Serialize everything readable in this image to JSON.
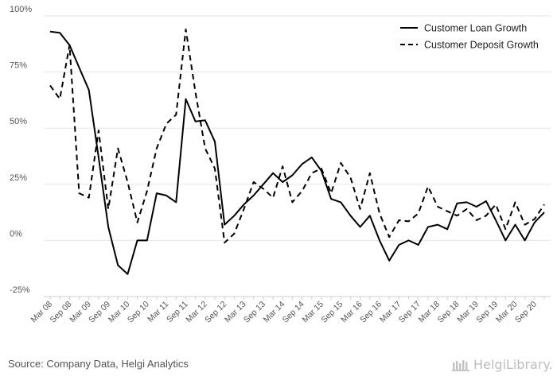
{
  "chart_data": {
    "type": "line",
    "title": "",
    "xlabel": "",
    "ylabel": "",
    "ylim": [
      -25,
      100
    ],
    "yticks": [
      "100%",
      "75%",
      "50%",
      "25%",
      "0%",
      "-25%"
    ],
    "grid": true,
    "legend_position": "top-right",
    "x_ticks": [
      "Mar 08",
      "Sep 08",
      "Mar 09",
      "Sep 09",
      "Mar 10",
      "Sep 10",
      "Mar 11",
      "Sep 11",
      "Mar 12",
      "Sep 12",
      "Mar 13",
      "Sep 13",
      "Mar 14",
      "Sep 14",
      "Mar 15",
      "Sep 15",
      "Mar 16",
      "Sep 16",
      "Mar 17",
      "Sep 17",
      "Mar 18",
      "Sep 18",
      "Mar 19",
      "Sep 19",
      "Mar 20",
      "Sep 20"
    ],
    "x": [
      "Mar 08",
      "Jun 08",
      "Sep 08",
      "Dec 08",
      "Mar 09",
      "Jun 09",
      "Sep 09",
      "Dec 09",
      "Mar 10",
      "Jun 10",
      "Sep 10",
      "Dec 10",
      "Mar 11",
      "Jun 11",
      "Sep 11",
      "Dec 11",
      "Mar 12",
      "Jun 12",
      "Sep 12",
      "Dec 12",
      "Mar 13",
      "Jun 13",
      "Sep 13",
      "Dec 13",
      "Mar 14",
      "Jun 14",
      "Sep 14",
      "Dec 14",
      "Mar 15",
      "Jun 15",
      "Sep 15",
      "Dec 15",
      "Mar 16",
      "Jun 16",
      "Sep 16",
      "Dec 16",
      "Mar 17",
      "Jun 17",
      "Sep 17",
      "Dec 17",
      "Mar 18",
      "Jun 18",
      "Sep 18",
      "Dec 18",
      "Mar 19",
      "Jun 19",
      "Sep 19",
      "Dec 19",
      "Mar 20",
      "Jun 20",
      "Sep 20",
      "Dec 20"
    ],
    "series": [
      {
        "name": "Customer Loan Growth",
        "style": "solid",
        "values": [
          93,
          92.5,
          87,
          77,
          67,
          37,
          6,
          -11,
          -15,
          0,
          0,
          21,
          20,
          17,
          63,
          53,
          53.5,
          44,
          7,
          11,
          16,
          20,
          25,
          30,
          26,
          29,
          34,
          37,
          31,
          18.5,
          17,
          11,
          6,
          11,
          0,
          -9,
          -2,
          0,
          -2,
          6,
          7,
          5,
          16.5,
          17,
          15,
          17.5,
          9,
          0,
          7,
          0,
          8,
          12.5
        ]
      },
      {
        "name": "Customer Deposit Growth",
        "style": "dashed",
        "values": [
          69,
          63,
          87,
          21,
          19,
          49,
          14,
          41,
          26,
          8,
          22,
          41,
          52,
          56,
          94,
          66,
          41,
          32,
          -1,
          3,
          14,
          26,
          23,
          19,
          33,
          17,
          22,
          30,
          32,
          21,
          34.5,
          28,
          14,
          30,
          12,
          1.5,
          9,
          8.5,
          12,
          24,
          15,
          13,
          11,
          14,
          9,
          11,
          16,
          5,
          17,
          7,
          9.5,
          16
        ]
      }
    ],
    "colors": {
      "line": "#000000",
      "grid": "#e6e6e6",
      "axis": "#d0d0d0"
    }
  },
  "footer": {
    "source": "Source: Company Data, Helgi Analytics",
    "brand": "HelgiLibrary."
  }
}
